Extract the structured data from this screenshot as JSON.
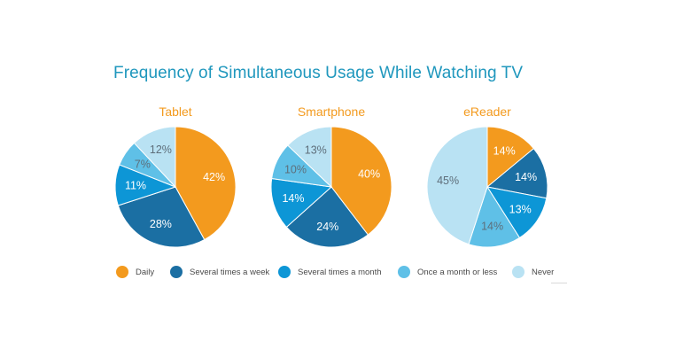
{
  "chart_data": {
    "type": "pie",
    "title": "Frequency of Simultaneous Usage While Watching TV",
    "categories": [
      "Daily",
      "Several times a week",
      "Several times a month",
      "Once a month or less",
      "Never"
    ],
    "colors": [
      "#f39a1e",
      "#1b6fa3",
      "#0d96d6",
      "#5fc0e7",
      "#b9e2f3"
    ],
    "label_colors": [
      "#ffffff",
      "#ffffff",
      "#ffffff",
      "#5e6e7a",
      "#5e6e7a"
    ],
    "charts": [
      {
        "title": "Tablet",
        "values": [
          42,
          28,
          11,
          7,
          12
        ]
      },
      {
        "title": "Smartphone",
        "values": [
          40,
          24,
          14,
          10,
          13
        ]
      },
      {
        "title": "eReader",
        "values": [
          14,
          14,
          13,
          14,
          45
        ]
      }
    ]
  },
  "legend": {
    "items": [
      {
        "label": "Daily",
        "color": "#f39a1e"
      },
      {
        "label": "Several times a week",
        "color": "#1b6fa3"
      },
      {
        "label": "Several times a month",
        "color": "#0d96d6"
      },
      {
        "label": "Once a month or less",
        "color": "#5fc0e7"
      },
      {
        "label": "Never",
        "color": "#b9e2f3"
      }
    ]
  }
}
